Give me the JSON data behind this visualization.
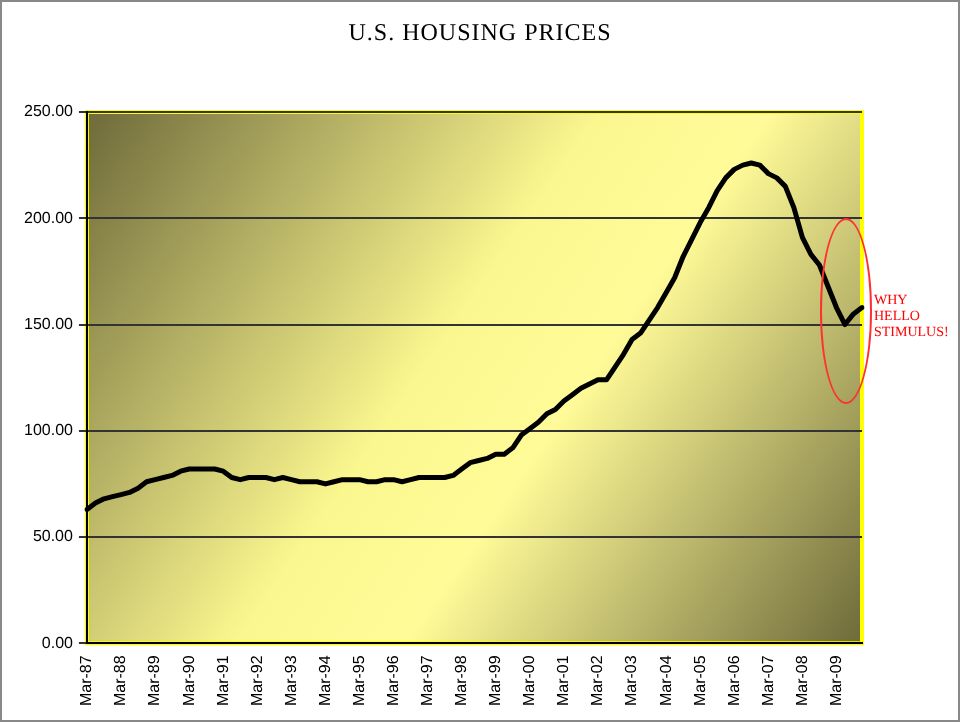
{
  "chart_data": {
    "type": "line",
    "title": "U.S. HOUSING PRICES",
    "categories": [
      "Mar-87",
      null,
      null,
      null,
      "Mar-88",
      null,
      null,
      null,
      "Mar-89",
      null,
      null,
      null,
      "Mar-90",
      null,
      null,
      null,
      "Mar-91",
      null,
      null,
      null,
      "Mar-92",
      null,
      null,
      null,
      "Mar-93",
      null,
      null,
      null,
      "Mar-94",
      null,
      null,
      null,
      "Mar-95",
      null,
      null,
      null,
      "Mar-96",
      null,
      null,
      null,
      "Mar-97",
      null,
      null,
      null,
      "Mar-98",
      null,
      null,
      null,
      "Mar-99",
      null,
      null,
      null,
      "Mar-00",
      null,
      null,
      null,
      "Mar-01",
      null,
      null,
      null,
      "Mar-02",
      null,
      null,
      null,
      "Mar-03",
      null,
      null,
      null,
      "Mar-04",
      null,
      null,
      null,
      "Mar-05",
      null,
      null,
      null,
      "Mar-06",
      null,
      null,
      null,
      "Mar-07",
      null,
      null,
      null,
      "Mar-08",
      null,
      null,
      null,
      "Mar-09",
      null,
      null,
      null
    ],
    "series": [
      {
        "color": "#000000",
        "values": [
          63,
          66,
          68,
          69,
          70,
          71,
          73,
          76,
          77,
          78,
          79,
          81,
          82,
          82,
          82,
          82,
          81,
          78,
          77,
          78,
          78,
          78,
          77,
          78,
          77,
          76,
          76,
          76,
          75,
          76,
          77,
          77,
          77,
          76,
          76,
          77,
          77,
          76,
          77,
          78,
          78,
          78,
          78,
          79,
          82,
          85,
          86,
          87,
          89,
          89,
          92,
          98,
          101,
          104,
          108,
          110,
          114,
          117,
          120,
          122,
          124,
          124,
          130,
          136,
          143,
          146,
          152,
          158,
          165,
          172,
          182,
          190,
          198,
          205,
          213,
          219,
          223,
          225,
          226,
          225,
          221,
          219,
          215,
          205,
          191,
          183,
          178,
          168,
          158,
          150,
          155,
          158
        ]
      }
    ],
    "ylim": [
      0,
      250
    ],
    "yticks": [
      {
        "value": 0,
        "label": "0.00"
      },
      {
        "value": 50,
        "label": "50.00"
      },
      {
        "value": 100,
        "label": "100.00"
      },
      {
        "value": 150,
        "label": "150.00"
      },
      {
        "value": 200,
        "label": "200.00"
      },
      {
        "value": 250,
        "label": "250.00"
      }
    ],
    "grid": "y",
    "legend": false,
    "marker": "none",
    "line_style": "solid",
    "annotations": [
      "WHY HELLO STIMULUS!"
    ]
  }
}
